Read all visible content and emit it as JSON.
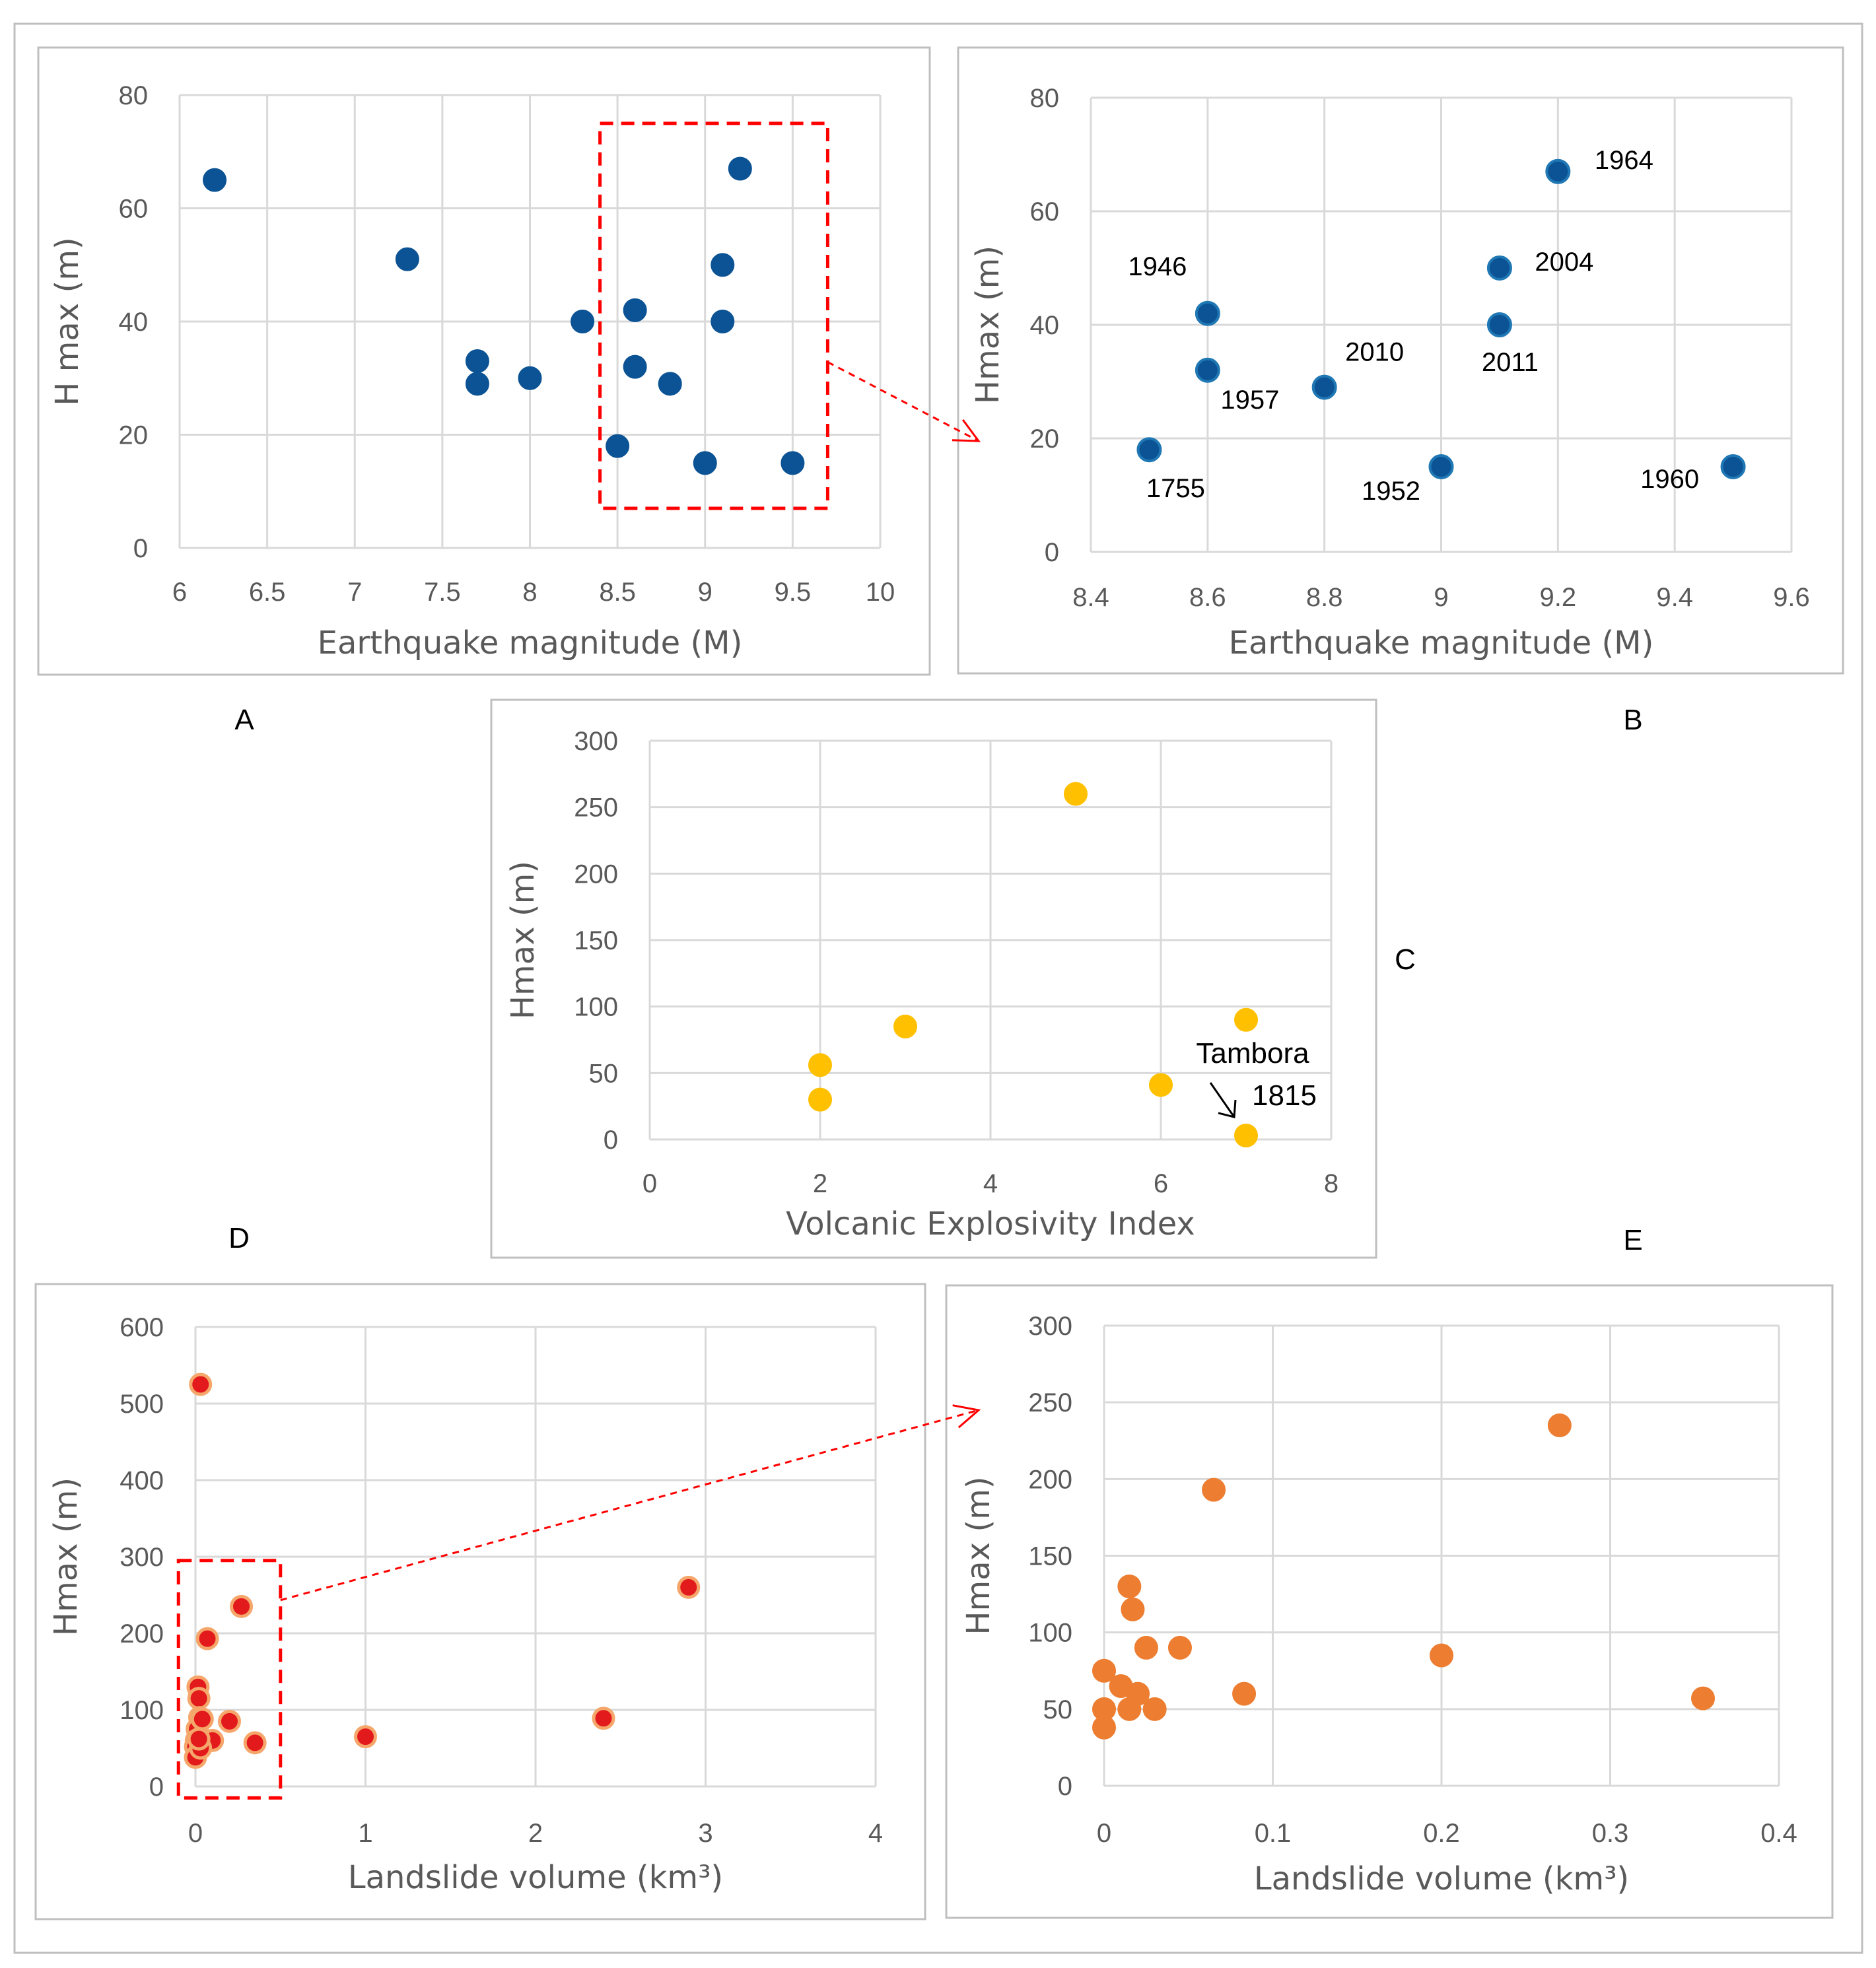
{
  "colors": {
    "frame": "#bfbfbf",
    "grid": "#d9d9d9",
    "text": "#595959",
    "blue": "#0b5394",
    "blue_rim": "#1f77b4",
    "yellow": "#ffc000",
    "red_fill": "#e31a1c",
    "red_rim": "#f5a76b",
    "orange": "#ed7d31",
    "dashed": "#ff0000"
  },
  "panel_labels": {
    "A": "A",
    "B": "B",
    "C": "C",
    "D": "D",
    "E": "E"
  },
  "chart_data": [
    {
      "panel": "A",
      "type": "scatter",
      "title": "",
      "xlabel": "Earthquake magnitude (M)",
      "ylabel": "H max (m)",
      "xlim": [
        6,
        10
      ],
      "ylim": [
        0,
        80
      ],
      "x_ticks": [
        "6",
        "6.5",
        "7",
        "7.5",
        "8",
        "8.5",
        "9",
        "9.5",
        "10"
      ],
      "y_ticks": [
        "0",
        "20",
        "40",
        "60",
        "80"
      ],
      "points": [
        {
          "x": 6.2,
          "y": 65
        },
        {
          "x": 7.3,
          "y": 51
        },
        {
          "x": 7.7,
          "y": 33
        },
        {
          "x": 7.7,
          "y": 29
        },
        {
          "x": 8.0,
          "y": 30
        },
        {
          "x": 8.3,
          "y": 40
        },
        {
          "x": 8.5,
          "y": 18
        },
        {
          "x": 8.6,
          "y": 42
        },
        {
          "x": 8.6,
          "y": 32
        },
        {
          "x": 8.8,
          "y": 29
        },
        {
          "x": 9.0,
          "y": 15
        },
        {
          "x": 9.1,
          "y": 50
        },
        {
          "x": 9.1,
          "y": 40
        },
        {
          "x": 9.2,
          "y": 67
        },
        {
          "x": 9.5,
          "y": 15
        }
      ],
      "zoom_box": {
        "x": [
          8.4,
          9.7
        ],
        "y": [
          7,
          75
        ]
      }
    },
    {
      "panel": "B",
      "type": "scatter",
      "title": "",
      "xlabel": "Earthquake magnitude (M)",
      "ylabel": "Hmax (m)",
      "xlim": [
        8.4,
        9.6
      ],
      "ylim": [
        0,
        80
      ],
      "x_ticks": [
        "8.4",
        "8.6",
        "8.8",
        "9",
        "9.2",
        "9.4",
        "9.6"
      ],
      "y_ticks": [
        "0",
        "20",
        "40",
        "60",
        "80"
      ],
      "points": [
        {
          "x": 8.5,
          "y": 18,
          "label": "1755"
        },
        {
          "x": 8.6,
          "y": 42,
          "label": "1946"
        },
        {
          "x": 8.6,
          "y": 32,
          "label": "1957"
        },
        {
          "x": 8.8,
          "y": 29,
          "label": "2010"
        },
        {
          "x": 9.0,
          "y": 15,
          "label": "1952"
        },
        {
          "x": 9.1,
          "y": 50,
          "label": "2004"
        },
        {
          "x": 9.1,
          "y": 40,
          "label": "2011"
        },
        {
          "x": 9.2,
          "y": 67,
          "label": "1964"
        },
        {
          "x": 9.5,
          "y": 15,
          "label": "1960"
        }
      ]
    },
    {
      "panel": "C",
      "type": "scatter",
      "title": "",
      "xlabel": "Volcanic Explosivity Index",
      "ylabel": "Hmax (m)",
      "xlim": [
        0,
        8
      ],
      "ylim": [
        0,
        300
      ],
      "x_ticks": [
        "0",
        "2",
        "4",
        "6",
        "8"
      ],
      "y_ticks": [
        "0",
        "50",
        "100",
        "150",
        "200",
        "250",
        "300"
      ],
      "points": [
        {
          "x": 2,
          "y": 56
        },
        {
          "x": 2,
          "y": 30
        },
        {
          "x": 3,
          "y": 85
        },
        {
          "x": 5,
          "y": 260
        },
        {
          "x": 6,
          "y": 41
        },
        {
          "x": 7,
          "y": 90
        },
        {
          "x": 7,
          "y": 3
        }
      ],
      "annotation": {
        "text_line1": "Tambora",
        "text_line2": "1815",
        "x": 7,
        "y": 3
      }
    },
    {
      "panel": "D",
      "type": "scatter",
      "title": "",
      "xlabel": "Landslide volume (km³)",
      "ylabel": "Hmax (m)",
      "xlim": [
        0,
        4
      ],
      "ylim": [
        0,
        600
      ],
      "x_ticks": [
        "0",
        "1",
        "2",
        "3",
        "4"
      ],
      "y_ticks": [
        "0",
        "100",
        "200",
        "300",
        "400",
        "500",
        "600"
      ],
      "points": [
        {
          "x": 0.03,
          "y": 525
        },
        {
          "x": 0.07,
          "y": 193
        },
        {
          "x": 0.27,
          "y": 235
        },
        {
          "x": 2.9,
          "y": 260
        },
        {
          "x": 1.0,
          "y": 65
        },
        {
          "x": 2.4,
          "y": 89
        },
        {
          "x": 0.2,
          "y": 85
        },
        {
          "x": 0.35,
          "y": 57
        },
        {
          "x": 0.1,
          "y": 60
        },
        {
          "x": 0.015,
          "y": 130
        },
        {
          "x": 0.02,
          "y": 115
        },
        {
          "x": 0.025,
          "y": 90
        },
        {
          "x": 0.01,
          "y": 75
        },
        {
          "x": 0.005,
          "y": 60
        },
        {
          "x": 0.0,
          "y": 52
        },
        {
          "x": 0.0,
          "y": 38
        },
        {
          "x": 0.03,
          "y": 50
        },
        {
          "x": 0.04,
          "y": 88
        },
        {
          "x": 0.02,
          "y": 62
        }
      ],
      "zoom_box": {
        "x": [
          -0.1,
          0.5
        ],
        "y": [
          -15,
          295
        ]
      }
    },
    {
      "panel": "E",
      "type": "scatter",
      "title": "",
      "xlabel": "Landslide volume (km³)",
      "ylabel": "Hmax (m)",
      "xlim": [
        0,
        0.4
      ],
      "ylim": [
        0,
        300
      ],
      "x_ticks": [
        "0",
        "0.1",
        "0.2",
        "0.3",
        "0.4"
      ],
      "y_ticks": [
        "0",
        "50",
        "100",
        "150",
        "200",
        "250",
        "300"
      ],
      "points": [
        {
          "x": 0.27,
          "y": 235
        },
        {
          "x": 0.065,
          "y": 193
        },
        {
          "x": 0.015,
          "y": 130
        },
        {
          "x": 0.017,
          "y": 115
        },
        {
          "x": 0.025,
          "y": 90
        },
        {
          "x": 0.045,
          "y": 90
        },
        {
          "x": 0.2,
          "y": 85
        },
        {
          "x": 0.0,
          "y": 75
        },
        {
          "x": 0.01,
          "y": 65
        },
        {
          "x": 0.02,
          "y": 60
        },
        {
          "x": 0.083,
          "y": 60
        },
        {
          "x": 0.355,
          "y": 57
        },
        {
          "x": 0.0,
          "y": 50
        },
        {
          "x": 0.015,
          "y": 50
        },
        {
          "x": 0.03,
          "y": 50
        },
        {
          "x": 0.0,
          "y": 38
        }
      ]
    }
  ]
}
